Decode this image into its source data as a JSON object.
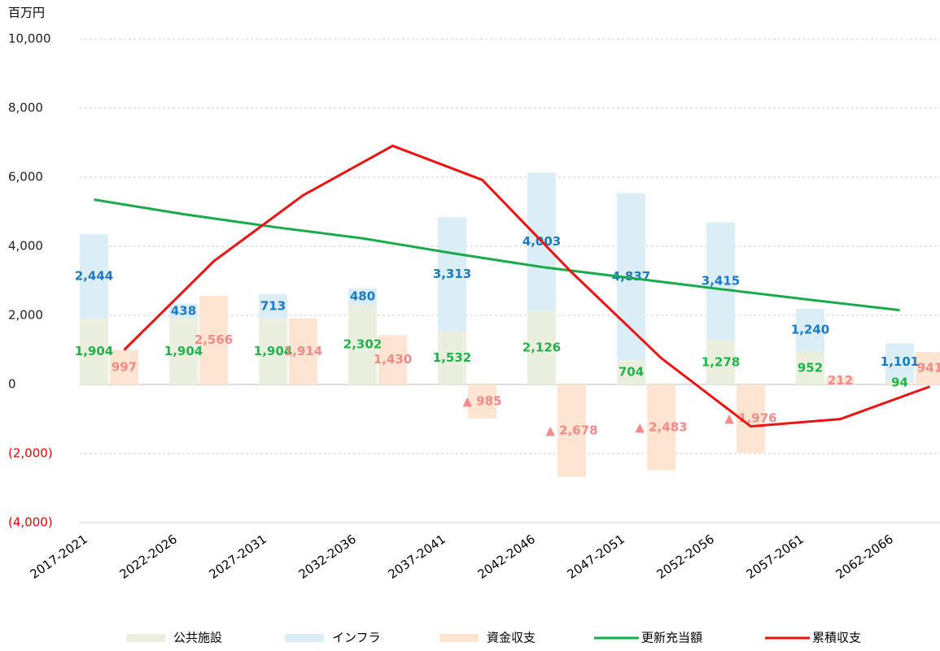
{
  "chart_data": {
    "type": "bar",
    "y_label": "百万円",
    "categories": [
      "2017-2021",
      "2022-2026",
      "2027-2031",
      "2032-2036",
      "2037-2041",
      "2042-2046",
      "2047-2051",
      "2052-2056",
      "2057-2061",
      "2062-2066"
    ],
    "series": [
      {
        "name": "公共施設",
        "type": "bar",
        "color": "#eaf0dd",
        "label_color": "#22b24c",
        "values": [
          1904,
          1904,
          1904,
          2302,
          1532,
          2126,
          704,
          1278,
          952,
          94
        ],
        "value_labels": [
          "1,904",
          "1,904",
          "1,904",
          "2,302",
          "1,532",
          "2,126",
          "704",
          "1,278",
          "952",
          "94"
        ]
      },
      {
        "name": "インフラ",
        "type": "bar",
        "color": "#dceef5",
        "label_color": "#1b7ac4",
        "values": [
          2444,
          438,
          713,
          480,
          3313,
          4003,
          4837,
          3415,
          1240,
          1101
        ],
        "value_labels": [
          "2,444",
          "438",
          "713",
          "480",
          "3,313",
          "4,003",
          "4,837",
          "3,415",
          "1,240",
          "1,101"
        ]
      },
      {
        "name": "資金収支",
        "type": "bar",
        "color": "#fde5d2",
        "label_color": "#f4898a",
        "values": [
          997,
          2566,
          1914,
          1430,
          -985,
          -2678,
          -2483,
          -1976,
          212,
          941
        ],
        "value_labels": [
          "997",
          "2,566",
          "1,914",
          "1,430",
          "▲ 985",
          "▲ 2,678",
          "▲ 2,483",
          "▲ 1,976",
          "212",
          "941"
        ]
      },
      {
        "name": "更新充当額",
        "type": "line",
        "color": "#1aaa4b",
        "values": [
          5350,
          4930,
          4560,
          4230,
          3800,
          3400,
          3080,
          2760,
          2450,
          2150
        ]
      },
      {
        "name": "累積収支",
        "type": "line",
        "color": "#ee1111",
        "values": [
          997,
          3563,
          5477,
          6907,
          5922,
          3244,
          761,
          -1215,
          -1003,
          -62
        ]
      }
    ],
    "ylim": [
      -4000,
      10000
    ],
    "yticks": [
      {
        "value": -4000,
        "label": "(4,000)"
      },
      {
        "value": -2000,
        "label": "(2,000)"
      },
      0,
      {
        "value": 2000,
        "label": "2,000"
      },
      {
        "value": 4000,
        "label": "4,000"
      },
      {
        "value": 6000,
        "label": "6,000"
      },
      {
        "value": 8000,
        "label": "8,000"
      },
      {
        "value": 10000,
        "label": "10,000"
      }
    ],
    "grid": true,
    "legend": "bottom"
  }
}
